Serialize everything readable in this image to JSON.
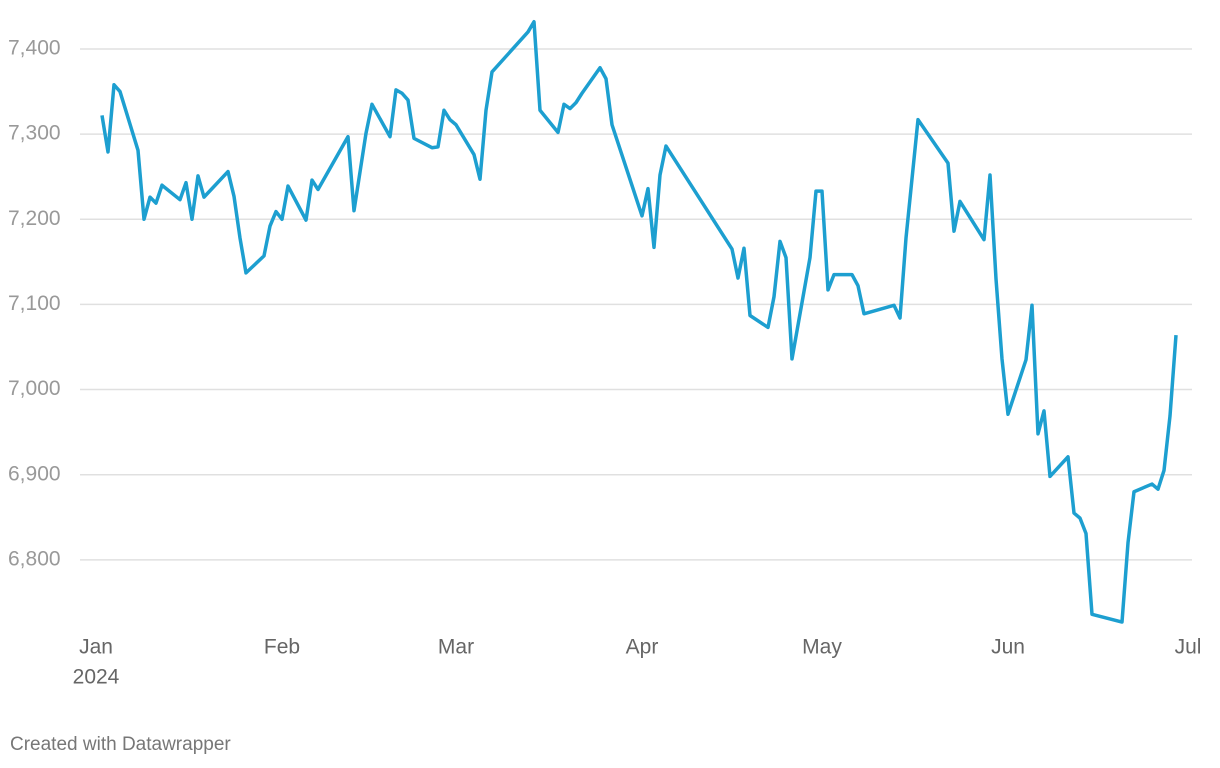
{
  "chart_data": {
    "type": "line",
    "x": [
      "2024-01-02",
      "2024-01-03",
      "2024-01-04",
      "2024-01-05",
      "2024-01-08",
      "2024-01-09",
      "2024-01-10",
      "2024-01-11",
      "2024-01-12",
      "2024-01-15",
      "2024-01-16",
      "2024-01-17",
      "2024-01-18",
      "2024-01-19",
      "2024-01-23",
      "2024-01-24",
      "2024-01-25",
      "2024-01-26",
      "2024-01-29",
      "2024-01-30",
      "2024-01-31",
      "2024-02-01",
      "2024-02-02",
      "2024-02-05",
      "2024-02-06",
      "2024-02-07",
      "2024-02-12",
      "2024-02-13",
      "2024-02-15",
      "2024-02-16",
      "2024-02-19",
      "2024-02-20",
      "2024-02-21",
      "2024-02-22",
      "2024-02-23",
      "2024-02-26",
      "2024-02-27",
      "2024-02-28",
      "2024-02-29",
      "2024-03-01",
      "2024-03-04",
      "2024-03-05",
      "2024-03-06",
      "2024-03-07",
      "2024-03-13",
      "2024-03-14",
      "2024-03-15",
      "2024-03-18",
      "2024-03-19",
      "2024-03-20",
      "2024-03-21",
      "2024-03-22",
      "2024-03-25",
      "2024-03-26",
      "2024-03-27",
      "2024-04-01",
      "2024-04-02",
      "2024-04-03",
      "2024-04-04",
      "2024-04-05",
      "2024-04-16",
      "2024-04-17",
      "2024-04-18",
      "2024-04-19",
      "2024-04-22",
      "2024-04-23",
      "2024-04-24",
      "2024-04-25",
      "2024-04-26",
      "2024-04-29",
      "2024-04-30",
      "2024-05-01",
      "2024-05-02",
      "2024-05-03",
      "2024-05-06",
      "2024-05-07",
      "2024-05-08",
      "2024-05-13",
      "2024-05-14",
      "2024-05-15",
      "2024-05-17",
      "2024-05-22",
      "2024-05-23",
      "2024-05-24",
      "2024-05-28",
      "2024-05-29",
      "2024-05-30",
      "2024-05-31",
      "2024-06-01",
      "2024-06-04",
      "2024-06-05",
      "2024-06-06",
      "2024-06-07",
      "2024-06-08",
      "2024-06-11",
      "2024-06-12",
      "2024-06-13",
      "2024-06-14",
      "2024-06-15",
      "2024-06-20",
      "2024-06-21",
      "2024-06-22",
      "2024-06-25",
      "2024-06-26",
      "2024-06-27",
      "2024-06-28",
      "2024-06-29"
    ],
    "series": [
      {
        "color": "#1d9fd0",
        "values": [
          7322,
          7279,
          7358,
          7350,
          7281,
          7200,
          7226,
          7219,
          7240,
          7223,
          7243,
          7200,
          7251,
          7226,
          7256,
          7227,
          7178,
          7137,
          7157,
          7192,
          7209,
          7200,
          7239,
          7199,
          7246,
          7235,
          7297,
          7210,
          7301,
          7335,
          7297,
          7352,
          7348,
          7340,
          7295,
          7284,
          7285,
          7328,
          7317,
          7311,
          7276,
          7247,
          7328,
          7373,
          7420,
          7432,
          7328,
          7302,
          7335,
          7330,
          7337,
          7348,
          7378,
          7365,
          7311,
          7204,
          7236,
          7167,
          7252,
          7286,
          7165,
          7131,
          7166,
          7087,
          7073,
          7109,
          7174,
          7155,
          7036,
          7155,
          7233,
          7233,
          7117,
          7135,
          7135,
          7122,
          7089,
          7099,
          7084,
          7178,
          7317,
          7266,
          7186,
          7221,
          7176,
          7252,
          7130,
          7036,
          6971,
          7035,
          7099,
          6948,
          6975,
          6898,
          6921,
          6855,
          6849,
          6831,
          6736,
          6727,
          6820,
          6880,
          6889,
          6883,
          6905,
          6969,
          7064
        ]
      }
    ],
    "xlim": [
      "2024-01-01",
      "2024-07-01"
    ],
    "xticks": [
      {
        "value": "2024-01-01",
        "label": "Jan",
        "year": "2024"
      },
      {
        "value": "2024-02-01",
        "label": "Feb"
      },
      {
        "value": "2024-03-01",
        "label": "Mar"
      },
      {
        "value": "2024-04-01",
        "label": "Apr"
      },
      {
        "value": "2024-05-01",
        "label": "May"
      },
      {
        "value": "2024-06-01",
        "label": "Jun"
      },
      {
        "value": "2024-07-01",
        "label": "Jul"
      }
    ],
    "ylim": [
      6700,
      7450
    ],
    "yticks": [
      {
        "value": 6800,
        "label": "6,800"
      },
      {
        "value": 6900,
        "label": "6,900"
      },
      {
        "value": 7000,
        "label": "7,000"
      },
      {
        "value": 7100,
        "label": "7,100"
      },
      {
        "value": 7200,
        "label": "7,200"
      },
      {
        "value": 7300,
        "label": "7,300"
      },
      {
        "value": 7400,
        "label": "7,400"
      }
    ],
    "grid": true,
    "footer": "Created with Datawrapper"
  }
}
